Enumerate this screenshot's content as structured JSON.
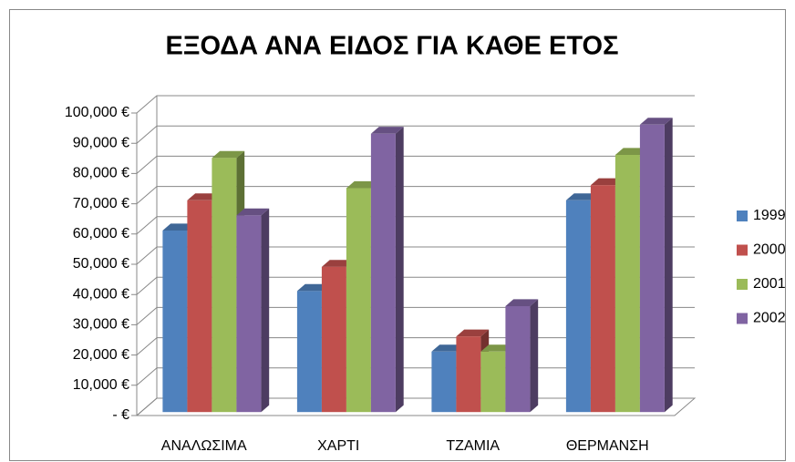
{
  "chart_data": {
    "type": "bar3d",
    "title": "ΕΞΟΔΑ ΑΝΑ ΕΙΔΟΣ ΓΙΑ ΚΑΘΕ ΕΤΟΣ",
    "categories": [
      "ΑΝΑΛΩΣΙΜΑ",
      "ΧΑΡΤΙ",
      "ΤΖΑΜΙΑ",
      "ΘΕΡΜΑΝΣΗ"
    ],
    "series": [
      {
        "name": "1999",
        "color": "#4f81bd",
        "values": [
          60000,
          40000,
          20000,
          70000
        ]
      },
      {
        "name": "2000",
        "color": "#c0504d",
        "values": [
          70000,
          48000,
          25000,
          75000
        ]
      },
      {
        "name": "2001",
        "color": "#9bbb59",
        "values": [
          84000,
          74000,
          20000,
          85000
        ]
      },
      {
        "name": "2002",
        "color": "#8064a2",
        "values": [
          65000,
          92000,
          35000,
          95000
        ]
      }
    ],
    "ylim": [
      0,
      100000
    ],
    "yticks": [
      {
        "value": 0,
        "label": "- €"
      },
      {
        "value": 10000,
        "label": "10,000 €"
      },
      {
        "value": 20000,
        "label": "20,000 €"
      },
      {
        "value": 30000,
        "label": "30,000 €"
      },
      {
        "value": 40000,
        "label": "40,000 €"
      },
      {
        "value": 50000,
        "label": "50,000 €"
      },
      {
        "value": 60000,
        "label": "60,000 €"
      },
      {
        "value": 70000,
        "label": "70,000 €"
      },
      {
        "value": 80000,
        "label": "80,000 €"
      },
      {
        "value": 90000,
        "label": "90,000 €"
      },
      {
        "value": 100000,
        "label": "100,000 €"
      }
    ],
    "grid": true,
    "legend": "right"
  }
}
